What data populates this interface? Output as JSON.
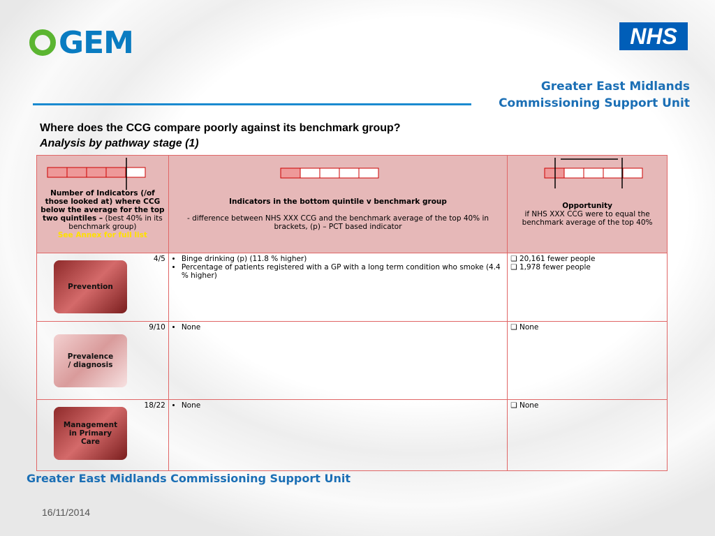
{
  "header": {
    "logo": "GEM",
    "nhs": "NHS",
    "org_line1": "Greater East Midlands",
    "org_line2": "Commissioning Support Unit"
  },
  "title": "Where does the CCG compare poorly against its benchmark group?",
  "subtitle": "Analysis by pathway stage (1)",
  "table": {
    "head": [
      {
        "bold": "Number of Indicators (/of those looked at) where CCG below the average for the top two quintiles –",
        "text": "(best 40% in its benchmark group)",
        "note": "See Annex for full list"
      },
      {
        "bold": "Indicators in the bottom quintile v benchmark group",
        "text": "- difference between NHS XXX CCG and the benchmark average of the top 40% in brackets, (p) – PCT based indicator"
      },
      {
        "bold": "Opportunity",
        "text": "if NHS XXX CCG were to equal the benchmark average of the top 40%"
      }
    ],
    "rows": [
      {
        "score": "4/5",
        "label": "Prevention",
        "indicators": [
          "Binge drinking (p) (11.8 % higher)",
          "Percentage of patients registered with a GP with a long term condition who smoke (4.4 % higher)"
        ],
        "opportunities": [
          "20,161 fewer people",
          "1,978 fewer people"
        ]
      },
      {
        "score": "9/10",
        "label": "Prevalence / diagnosis",
        "indicators": [
          "None"
        ],
        "opportunities": [
          "None"
        ]
      },
      {
        "score": "18/22",
        "label": "Management in Primary Care",
        "indicators": [
          "None"
        ],
        "opportunities": [
          "None"
        ]
      }
    ]
  },
  "footer": {
    "org": "Greater East Midlands Commissioning Support Unit",
    "date": "16/11/2014"
  }
}
